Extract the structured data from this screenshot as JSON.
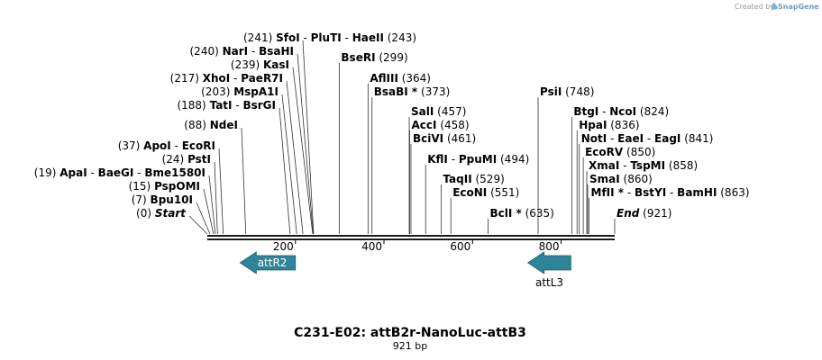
{
  "credit": {
    "text": "Created by",
    "brand": "SnapGene"
  },
  "title": "C231-E02: attB2r-NanoLuc-attB3",
  "subtitle": "921 bp",
  "sequence": {
    "length": 921
  },
  "axis": {
    "ticks": [
      200,
      400,
      600,
      800
    ]
  },
  "sites": [
    {
      "pos": "(0)",
      "names": [
        "Start"
      ],
      "bp": 1,
      "italic": true
    },
    {
      "pos": "(7)",
      "names": [
        "Bpu10I"
      ],
      "bp": 7
    },
    {
      "pos": "(15)",
      "names": [
        "PspOMI"
      ],
      "bp": 15
    },
    {
      "pos": "(19)",
      "names": [
        "ApaI",
        "BaeGI",
        "Bme1580I"
      ],
      "bp": 19
    },
    {
      "pos": "(24)",
      "names": [
        "PstI"
      ],
      "bp": 24
    },
    {
      "pos": "(37)",
      "names": [
        "ApoI",
        "EcoRI"
      ],
      "bp": 37
    },
    {
      "pos": "(88)",
      "names": [
        "NdeI"
      ],
      "bp": 88
    },
    {
      "pos": "(188)",
      "names": [
        "TatI",
        "BsrGI"
      ],
      "bp": 188
    },
    {
      "pos": "(203)",
      "names": [
        "MspA1I"
      ],
      "bp": 203
    },
    {
      "pos": "(217)",
      "names": [
        "XhoI",
        "PaeR7I"
      ],
      "bp": 217
    },
    {
      "pos": "(239)",
      "names": [
        "KasI"
      ],
      "bp": 239
    },
    {
      "pos": "(240)",
      "names": [
        "NarI",
        "BsaHI"
      ],
      "bp": 240
    },
    {
      "pos": "(241)",
      "names": [
        "SfoI",
        "PluTI",
        "HaeII"
      ],
      "bp": 241,
      "posRight": "(243)"
    },
    {
      "pos": "(299)",
      "names": [
        "BseRI"
      ],
      "bp": 299,
      "right": true
    },
    {
      "pos": "(364)",
      "names": [
        "AflIII"
      ],
      "bp": 364,
      "right": true
    },
    {
      "pos": "(373)",
      "names": [
        "BsaBI *"
      ],
      "bp": 373,
      "right": true
    },
    {
      "pos": "(457)",
      "names": [
        "SalI"
      ],
      "bp": 457,
      "right": true
    },
    {
      "pos": "(458)",
      "names": [
        "AccI"
      ],
      "bp": 458,
      "right": true
    },
    {
      "pos": "(461)",
      "names": [
        "BciVI"
      ],
      "bp": 461,
      "right": true
    },
    {
      "pos": "(494)",
      "names": [
        "KflI",
        "PpuMI"
      ],
      "bp": 494,
      "right": true
    },
    {
      "pos": "(529)",
      "names": [
        "TaqII"
      ],
      "bp": 529,
      "right": true
    },
    {
      "pos": "(551)",
      "names": [
        "EcoNI"
      ],
      "bp": 551,
      "right": true
    },
    {
      "pos": "(635)",
      "names": [
        "BclI *"
      ],
      "bp": 635,
      "right": true
    },
    {
      "pos": "(748)",
      "names": [
        "PsiI"
      ],
      "bp": 748,
      "right": true
    },
    {
      "pos": "(824)",
      "names": [
        "BtgI",
        "NcoI"
      ],
      "bp": 824,
      "right": true
    },
    {
      "pos": "(836)",
      "names": [
        "HpaI"
      ],
      "bp": 836,
      "right": true
    },
    {
      "pos": "(841)",
      "names": [
        "NotI",
        "EaeI",
        "EagI"
      ],
      "bp": 841,
      "right": true
    },
    {
      "pos": "(850)",
      "names": [
        "EcoRV"
      ],
      "bp": 850,
      "right": true
    },
    {
      "pos": "(858)",
      "names": [
        "XmaI",
        "TspMI"
      ],
      "bp": 858,
      "right": true
    },
    {
      "pos": "(860)",
      "names": [
        "SmaI"
      ],
      "bp": 860,
      "right": true
    },
    {
      "pos": "(863)",
      "names": [
        "MfII *",
        "BstYI",
        "BamHI"
      ],
      "bp": 863,
      "right": true
    },
    {
      "pos": "(921)",
      "names": [
        "End"
      ],
      "bp": 921,
      "right": true,
      "italic": true
    }
  ],
  "features": [
    {
      "name": "attR2",
      "start": 75,
      "end": 200,
      "direction": "reverse",
      "color": "#2e8597",
      "labelInside": true
    },
    {
      "name": "attL3",
      "start": 725,
      "end": 822,
      "direction": "reverse",
      "color": "#2e8597",
      "labelInside": false
    }
  ],
  "colors": {
    "backbone": "#1a1a1a",
    "line": "#333333",
    "feature": "#2e8597"
  }
}
